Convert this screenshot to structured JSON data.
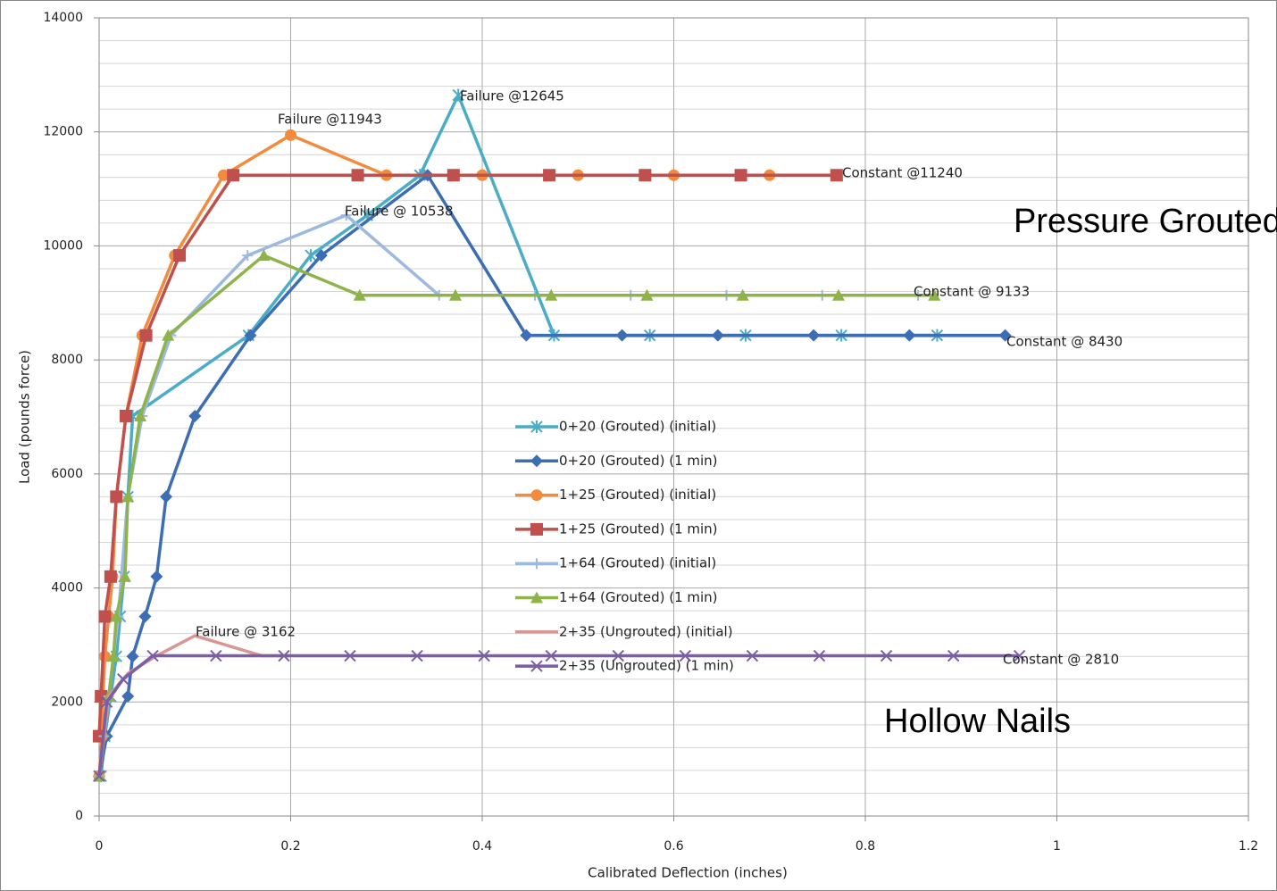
{
  "chart_data": {
    "type": "line",
    "x_label": "Calibrated Deflection (inches)",
    "y_label": "Load (pounds force)",
    "xlim": [
      0,
      1.2
    ],
    "xticks": [
      0,
      0.2,
      0.4,
      0.6,
      0.8,
      1,
      1.2
    ],
    "ylim": [
      0,
      14000
    ],
    "yticks": [
      0,
      2000,
      4000,
      6000,
      8000,
      10000,
      12000,
      14000
    ],
    "grid": true,
    "series": [
      {
        "name": "0+20 (Grouted) (initial)",
        "color": "#4bacc6",
        "marker": "star",
        "x": [
          0.002,
          0.006,
          0.012,
          0.018,
          0.022,
          0.026,
          0.03,
          0.035,
          0.156,
          0.221,
          0.28,
          0.335,
          0.375,
          0.475,
          0.575,
          0.675,
          0.775,
          0.875
        ],
        "values": [
          700,
          1400,
          2100,
          2800,
          3500,
          4200,
          5600,
          7016,
          8430,
          9833,
          10538,
          11240,
          12645,
          8430,
          8430,
          8430,
          8430,
          8430
        ]
      },
      {
        "name": "0+20 (Grouted) (1 min)",
        "color": "#3d6eb4",
        "marker": "diamond",
        "x": [
          0,
          0.008,
          0.03,
          0.035,
          0.048,
          0.06,
          0.07,
          0.1,
          0.158,
          0.232,
          0.343,
          0.446,
          0.546,
          0.646,
          0.746,
          0.846,
          0.946
        ],
        "values": [
          700,
          1400,
          2100,
          2800,
          3500,
          4200,
          5600,
          7016,
          8430,
          9833,
          11240,
          8430,
          8430,
          8430,
          8430,
          8430,
          8430
        ]
      },
      {
        "name": "1+25 (Grouted) (initial)",
        "color": "#f38b3c",
        "marker": "circle",
        "x": [
          0,
          0.003,
          0.004,
          0.006,
          0.01,
          0.014,
          0.018,
          0.028,
          0.045,
          0.079,
          0.13,
          0.2,
          0.3,
          0.4,
          0.5,
          0.6,
          0.7
        ],
        "values": [
          700,
          1400,
          2100,
          2800,
          3500,
          4200,
          5600,
          7016,
          8430,
          9833,
          11240,
          11943,
          11240,
          11240,
          11240,
          11240,
          11240
        ]
      },
      {
        "name": "1+25 (Grouted) (1 min)",
        "color": "#c0504d",
        "marker": "square",
        "x": [
          0,
          0.002,
          0.006,
          0.012,
          0.018,
          0.028,
          0.049,
          0.084,
          0.14,
          0.27,
          0.37,
          0.47,
          0.57,
          0.67,
          0.77
        ],
        "values": [
          1400,
          2100,
          3500,
          4200,
          5600,
          7016,
          8430,
          9833,
          11240,
          11240,
          11240,
          11240,
          11240,
          11240,
          11240
        ]
      },
      {
        "name": "1+64 (Grouted) (initial)",
        "color": "#9db9e0",
        "marker": "plus",
        "x": [
          0,
          0.005,
          0.01,
          0.02,
          0.03,
          0.045,
          0.075,
          0.155,
          0.258,
          0.355,
          0.455,
          0.555,
          0.655,
          0.755,
          0.855
        ],
        "values": [
          700,
          1400,
          2100,
          3500,
          5600,
          7016,
          8430,
          9833,
          10538,
          9133,
          9133,
          9133,
          9133,
          9133,
          9133
        ]
      },
      {
        "name": "1+64 (Grouted) (1 min)",
        "color": "#8db34a",
        "marker": "triangle",
        "x": [
          0,
          0.01,
          0.015,
          0.018,
          0.027,
          0.03,
          0.043,
          0.072,
          0.172,
          0.272,
          0.372,
          0.472,
          0.572,
          0.672,
          0.772,
          0.872
        ],
        "values": [
          700,
          2100,
          2800,
          3500,
          4200,
          5600,
          7016,
          8430,
          9833,
          9133,
          9133,
          9133,
          9133,
          9133,
          9133,
          9133
        ]
      },
      {
        "name": "2+35 (Ungrouted) (initial)",
        "color": "#d99694",
        "marker": "none",
        "x": [
          0,
          0.01,
          0.03,
          0.06,
          0.1,
          0.17,
          0.2
        ],
        "values": [
          700,
          2100,
          2500,
          2810,
          3162,
          2810,
          2810
        ]
      },
      {
        "name": "2+35 (Ungrouted) (1 min)",
        "color": "#7b5ea3",
        "marker": "cross",
        "x": [
          0,
          0.008,
          0.025,
          0.056,
          0.122,
          0.193,
          0.262,
          0.332,
          0.402,
          0.472,
          0.542,
          0.612,
          0.682,
          0.752,
          0.822,
          0.892,
          0.961
        ],
        "values": [
          700,
          2000,
          2400,
          2810,
          2810,
          2810,
          2810,
          2810,
          2810,
          2810,
          2810,
          2810,
          2810,
          2810,
          2810,
          2810,
          2810
        ]
      }
    ],
    "annotations": [
      "Failure @12645",
      "Failure @11943",
      "Constant @11240",
      "Failure @ 10538",
      "Constant @ 9133",
      "Constant @ 8430",
      "Failure @ 3162",
      "Constant @ 2810",
      "Pressure Grouted",
      "Hollow Nails"
    ]
  }
}
